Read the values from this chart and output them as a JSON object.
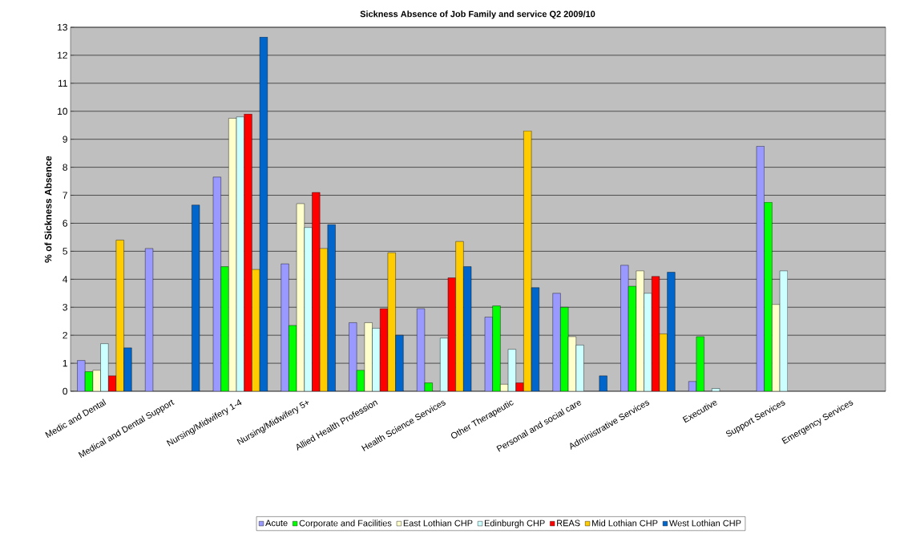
{
  "chart_data": {
    "type": "bar",
    "title": "Sickness Absence of Job Family and service Q2 2009/10",
    "ylabel": "% of Sickness Absence",
    "categories": [
      "Medic and Dental",
      "Medical and Dental Support",
      "Nursing/Midwifery 1-4",
      "Nursing/Midwifery 5+",
      "Allied Health Profession",
      "Health Science Services",
      "Other Therapeutic",
      "Personal and social care",
      "Administrative Services",
      "Executive",
      "Support Services",
      "Emergency Services"
    ],
    "series": [
      {
        "name": "Acute",
        "color": "#9999ff",
        "values": [
          1.1,
          5.1,
          7.65,
          4.55,
          2.45,
          2.95,
          2.65,
          3.5,
          4.5,
          0.35,
          8.75,
          null
        ]
      },
      {
        "name": "Corporate and Facilities",
        "color": "#00ff00",
        "values": [
          0.7,
          null,
          4.45,
          2.35,
          0.75,
          0.3,
          3.05,
          3.0,
          3.75,
          1.95,
          6.75,
          null
        ]
      },
      {
        "name": "East Lothian CHP",
        "color": "#ffffcc",
        "values": [
          0.75,
          null,
          9.75,
          6.7,
          2.45,
          null,
          0.25,
          1.95,
          4.3,
          null,
          3.1,
          null
        ]
      },
      {
        "name": "Edinburgh CHP",
        "color": "#ccffff",
        "values": [
          1.7,
          null,
          9.8,
          5.85,
          2.25,
          1.9,
          1.5,
          1.65,
          3.5,
          0.1,
          4.3,
          null
        ]
      },
      {
        "name": "REAS",
        "color": "#ff0000",
        "values": [
          0.55,
          null,
          9.9,
          7.1,
          2.95,
          4.05,
          0.3,
          null,
          4.1,
          null,
          null,
          null
        ]
      },
      {
        "name": "Mid Lothian CHP",
        "color": "#ffcc00",
        "values": [
          5.4,
          null,
          4.35,
          5.1,
          4.95,
          5.35,
          9.3,
          null,
          2.05,
          null,
          null,
          null
        ]
      },
      {
        "name": "West Lothian CHP",
        "color": "#0066cc",
        "values": [
          1.55,
          6.65,
          12.65,
          5.95,
          2.0,
          4.45,
          3.7,
          0.55,
          4.25,
          null,
          null,
          null
        ]
      }
    ],
    "ylim": [
      0,
      13
    ],
    "yticks": [
      0,
      1,
      2,
      3,
      4,
      5,
      6,
      7,
      8,
      9,
      10,
      11,
      12,
      13
    ],
    "grid": "y",
    "legend": "bottom"
  }
}
